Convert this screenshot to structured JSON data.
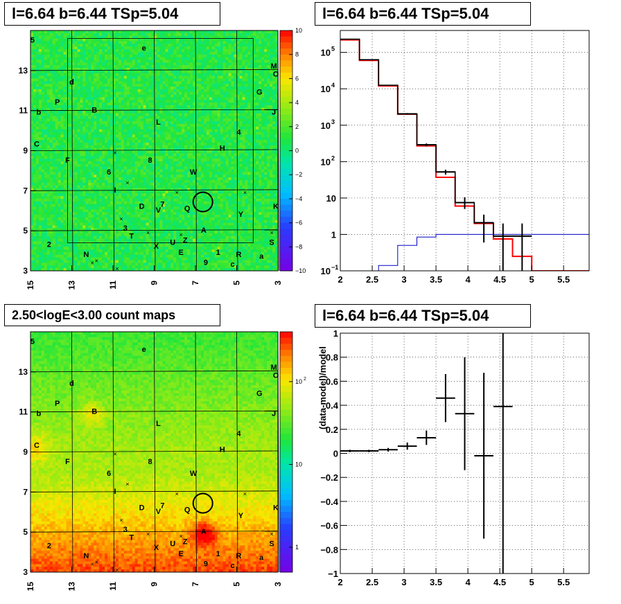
{
  "panels": {
    "tl": {
      "title": "l=6.64 b=6.44 TSp=5.04"
    },
    "tr": {
      "title": "l=6.64 b=6.44 TSp=5.04"
    },
    "bl": {
      "title": "2.50<logE<3.00 count maps"
    },
    "br": {
      "title": "l=6.64 b=6.44 TSp=5.04"
    }
  },
  "chart_data": [
    {
      "type": "heatmap",
      "title": "l=6.64 b=6.44 TSp=5.04",
      "x_ticks": [
        "15",
        "13",
        "11",
        "9",
        "7",
        "5",
        "3"
      ],
      "y_ticks": [
        "3",
        "5",
        "7",
        "9",
        "11",
        "13"
      ],
      "xlim": [
        15,
        3
      ],
      "ylim": [
        3,
        15
      ],
      "colorbar_ticks": [
        "10",
        "8",
        "6",
        "4",
        "2",
        "0",
        "−2",
        "−4",
        "−6",
        "−8",
        "−10"
      ],
      "colorbar_range": [
        -10,
        10
      ],
      "circle": {
        "l": 6.64,
        "b": 6.44
      },
      "sources": [
        {
          "label": "5",
          "l": 14.9,
          "b": 14.4
        },
        {
          "label": "e",
          "l": 9.5,
          "b": 14.0
        },
        {
          "label": "M",
          "l": 3.2,
          "b": 13.1
        },
        {
          "label": "O",
          "l": 3.1,
          "b": 12.7
        },
        {
          "label": "d",
          "l": 13.0,
          "b": 12.3
        },
        {
          "label": "G",
          "l": 3.9,
          "b": 11.8
        },
        {
          "label": "P",
          "l": 13.7,
          "b": 11.3
        },
        {
          "label": "B",
          "l": 11.9,
          "b": 10.9
        },
        {
          "label": "b",
          "l": 14.6,
          "b": 10.8
        },
        {
          "label": "J",
          "l": 3.2,
          "b": 10.8
        },
        {
          "label": "L",
          "l": 8.8,
          "b": 10.3
        },
        {
          "label": "4",
          "l": 4.9,
          "b": 9.8
        },
        {
          "label": "C",
          "l": 14.7,
          "b": 9.2
        },
        {
          "label": "H",
          "l": 5.7,
          "b": 9.0
        },
        {
          "label": "F",
          "l": 13.2,
          "b": 8.4
        },
        {
          "label": "8",
          "l": 9.2,
          "b": 8.4
        },
        {
          "label": "6",
          "l": 11.2,
          "b": 7.8
        },
        {
          "label": "W",
          "l": 7.1,
          "b": 7.8
        },
        {
          "label": "I",
          "l": 10.9,
          "b": 6.9
        },
        {
          "label": "D",
          "l": 9.6,
          "b": 6.1
        },
        {
          "label": "7",
          "l": 8.6,
          "b": 6.2
        },
        {
          "label": "V",
          "l": 8.8,
          "b": 5.9
        },
        {
          "label": "Q",
          "l": 7.4,
          "b": 6.0
        },
        {
          "label": "Y",
          "l": 4.8,
          "b": 5.7
        },
        {
          "label": "K",
          "l": 3.1,
          "b": 6.1
        },
        {
          "label": "3",
          "l": 10.4,
          "b": 5.0
        },
        {
          "label": "A",
          "l": 6.6,
          "b": 4.9
        },
        {
          "label": "T",
          "l": 10.1,
          "b": 4.6
        },
        {
          "label": "U",
          "l": 8.1,
          "b": 4.3
        },
        {
          "label": "Z",
          "l": 7.5,
          "b": 4.4
        },
        {
          "label": "2",
          "l": 14.1,
          "b": 4.2
        },
        {
          "label": "X",
          "l": 8.9,
          "b": 4.1
        },
        {
          "label": "S",
          "l": 3.3,
          "b": 4.3
        },
        {
          "label": "E",
          "l": 7.7,
          "b": 3.8
        },
        {
          "label": "N",
          "l": 12.3,
          "b": 3.7
        },
        {
          "label": "1",
          "l": 5.9,
          "b": 3.8
        },
        {
          "label": "R",
          "l": 4.9,
          "b": 3.7
        },
        {
          "label": "a",
          "l": 3.8,
          "b": 3.6
        },
        {
          "label": "9",
          "l": 6.5,
          "b": 3.3
        },
        {
          "label": "c",
          "l": 5.2,
          "b": 3.2
        }
      ],
      "crosses": [
        {
          "l": 10.9,
          "b": 8.9
        },
        {
          "l": 10.3,
          "b": 7.4
        },
        {
          "l": 7.9,
          "b": 6.9
        },
        {
          "l": 4.6,
          "b": 6.9
        },
        {
          "l": 10.6,
          "b": 5.6
        },
        {
          "l": 9.3,
          "b": 4.9
        },
        {
          "l": 7.7,
          "b": 4.8
        },
        {
          "l": 11.8,
          "b": 3.5
        },
        {
          "l": 3.3,
          "b": 4.9
        },
        {
          "l": 12.0,
          "b": 3.4
        },
        {
          "l": 10.8,
          "b": 3.1
        }
      ]
    },
    {
      "type": "line",
      "title": "l=6.64 b=6.44 TSp=5.04",
      "x_ticks": [
        "2",
        "2.5",
        "3",
        "3.5",
        "4",
        "4.5",
        "5",
        "5.5"
      ],
      "xlim": [
        2,
        5.9
      ],
      "y_scale": "log",
      "ylim": [
        0.1,
        400000
      ],
      "y_ticks": [
        {
          "v": 100000,
          "base": "10",
          "exp": "5"
        },
        {
          "v": 10000,
          "base": "10",
          "exp": "4"
        },
        {
          "v": 1000,
          "base": "10",
          "exp": "3"
        },
        {
          "v": 100,
          "base": "10",
          "exp": "2"
        },
        {
          "v": 10,
          "base": "10",
          "exp": ""
        },
        {
          "v": 1,
          "base": "1",
          "exp": ""
        },
        {
          "v": 0.1,
          "base": "10",
          "exp": "−1"
        }
      ],
      "bin_edges": [
        2.0,
        2.3,
        2.6,
        2.9,
        3.2,
        3.5,
        3.8,
        4.1,
        4.4,
        4.7,
        5.0,
        5.9
      ],
      "series": [
        {
          "color": "#ff0000",
          "values": [
            220000,
            60000,
            12000,
            2000,
            270,
            37,
            6,
            2,
            0.75,
            0.25,
            0.1
          ]
        },
        {
          "color": "#000000",
          "values": [
            230000,
            63000,
            12500,
            2050,
            290,
            52,
            7.5,
            2.1,
            0.9,
            0.9
          ]
        },
        {
          "color": "#0000c8",
          "values": [
            0.05,
            0.05,
            0.14,
            0.5,
            0.85,
            1.0,
            1.0,
            1.0,
            1.0,
            1.0,
            1.0
          ]
        }
      ],
      "data_points": [
        {
          "x": 3.05,
          "y": 2050,
          "lo": 1950,
          "hi": 2150
        },
        {
          "x": 3.35,
          "y": 290,
          "lo": 265,
          "hi": 315
        },
        {
          "x": 3.65,
          "y": 52,
          "lo": 44,
          "hi": 60
        },
        {
          "x": 3.95,
          "y": 7.5,
          "lo": 5,
          "hi": 10.5
        },
        {
          "x": 4.25,
          "y": 2.1,
          "lo": 0.6,
          "hi": 3.5
        },
        {
          "x": 4.55,
          "y": 0.9,
          "lo": 0.1,
          "hi": 2.0
        },
        {
          "x": 4.85,
          "y": 0.9,
          "lo": 0.1,
          "hi": 2.0
        }
      ]
    },
    {
      "type": "heatmap",
      "title": "2.50<logE<3.00 count maps",
      "x_ticks": [
        "15",
        "13",
        "11",
        "9",
        "7",
        "5",
        "3"
      ],
      "y_ticks": [
        "3",
        "5",
        "7",
        "9",
        "11",
        "13"
      ],
      "xlim": [
        15,
        3
      ],
      "ylim": [
        3,
        15
      ],
      "colorbar_scale": "log",
      "colorbar_ticks": [
        {
          "v": 100,
          "base": "10",
          "exp": "2"
        },
        {
          "v": 10,
          "base": "10",
          "exp": ""
        },
        {
          "v": 1,
          "base": "1",
          "exp": ""
        }
      ],
      "colorbar_range": [
        0.5,
        400
      ],
      "circle": {
        "l": 6.64,
        "b": 6.44
      }
    },
    {
      "type": "scatter",
      "title": "l=6.64 b=6.44 TSp=5.04",
      "ylabel": "(data-model)/model",
      "x_ticks": [
        "2",
        "2.5",
        "3",
        "3.5",
        "4",
        "4.5",
        "5",
        "5.5"
      ],
      "y_ticks": [
        "1",
        "0.8",
        "0.6",
        "0.4",
        "0.2",
        "0",
        "−0.2",
        "−0.4",
        "−0.6",
        "−0.8",
        "−1"
      ],
      "xlim": [
        2,
        5.9
      ],
      "ylim": [
        -1,
        1
      ],
      "points": [
        {
          "x": 2.15,
          "y": 0.02,
          "xerr": 0.15,
          "yerr": 0.01
        },
        {
          "x": 2.45,
          "y": 0.02,
          "xerr": 0.15,
          "yerr": 0.01
        },
        {
          "x": 2.75,
          "y": 0.03,
          "xerr": 0.15,
          "yerr": 0.015
        },
        {
          "x": 3.05,
          "y": 0.06,
          "xerr": 0.15,
          "yerr": 0.03
        },
        {
          "x": 3.35,
          "y": 0.13,
          "xerr": 0.15,
          "yerr": 0.06
        },
        {
          "x": 3.65,
          "y": 0.46,
          "xerr": 0.15,
          "yerr": 0.2
        },
        {
          "x": 3.95,
          "y": 0.33,
          "xerr": 0.15,
          "yerr": 0.47
        },
        {
          "x": 4.25,
          "y": -0.02,
          "xerr": 0.15,
          "yerr": 0.69
        },
        {
          "x": 4.55,
          "y": 0.39,
          "xerr": 0.15,
          "yerr": 1.5
        }
      ]
    }
  ]
}
